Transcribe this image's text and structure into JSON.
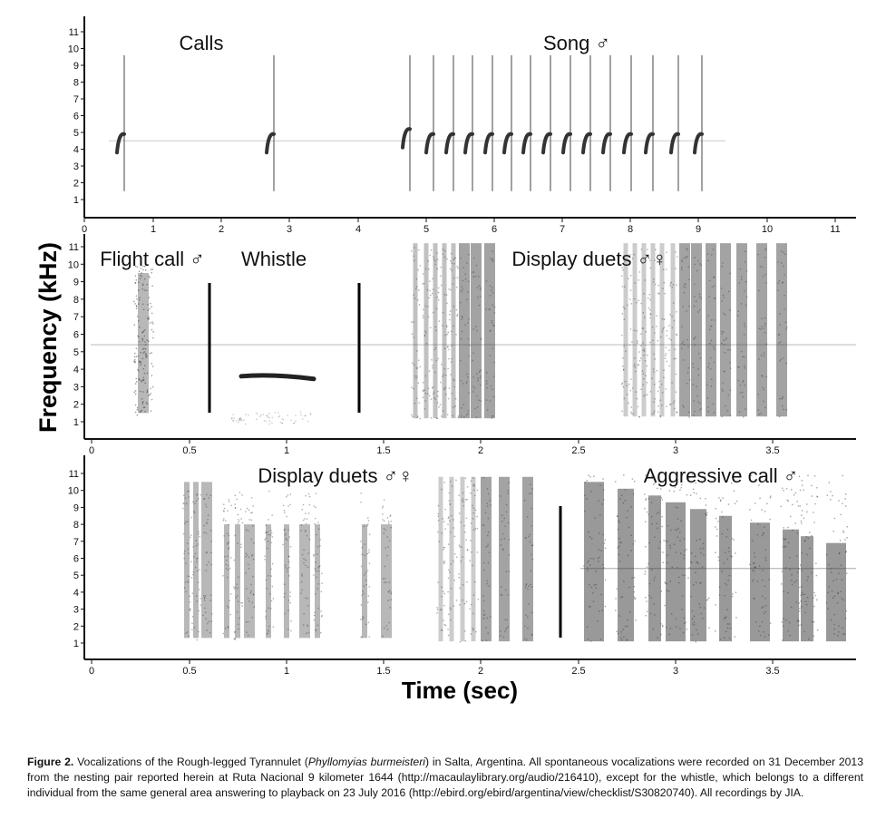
{
  "figure": {
    "ylabel": "Frequency (kHz)",
    "xlabel": "Time (sec)",
    "panels": [
      {
        "labels": [
          "Calls",
          "Song ♂"
        ],
        "xticks": [
          "0",
          "1",
          "2",
          "3",
          "4",
          "5",
          "6",
          "7",
          "8",
          "9",
          "10",
          "11"
        ],
        "yticks": [
          "1",
          "2",
          "3",
          "4",
          "5",
          "6",
          "7",
          "8",
          "9",
          "10",
          "11"
        ]
      },
      {
        "labels": [
          "Flight call ♂",
          "Whistle",
          "Display duets ♂♀"
        ],
        "xticks": [
          "0",
          "0.5",
          "1",
          "1.5",
          "2",
          "2.5",
          "3",
          "3.5"
        ],
        "yticks": [
          "1",
          "2",
          "3",
          "4",
          "5",
          "6",
          "7",
          "8",
          "9",
          "10",
          "11"
        ]
      },
      {
        "labels": [
          "Display duets ♂♀",
          "Aggressive call ♂"
        ],
        "xticks": [
          "0",
          "0.5",
          "1",
          "1.5",
          "2",
          "2.5",
          "3",
          "3.5"
        ],
        "yticks": [
          "1",
          "2",
          "3",
          "4",
          "5",
          "6",
          "7",
          "8",
          "9",
          "10",
          "11"
        ]
      }
    ]
  },
  "caption": {
    "label": "Figure 2.",
    "text_before_species": " Vocalizations of the Rough-legged Tyrannulet (",
    "species": "Phyllomyias burmeisteri",
    "text_after_species": ") in Salta, Argentina. All spontaneous vocalizations were recorded on 31 December 2013 from the nesting pair reported herein at Ruta Nacional 9 kilometer 1644 (http://macaulaylibrary.org/audio/216410), except for the whistle, which belongs to a different individual from the same general area answering to playback on 23 July 2016 (http://ebird.org/ebird/argentina/view/checklist/S30820740). All recordings by JIA."
  },
  "colors": {
    "ink": "#111111",
    "spectrogram": "#333333"
  }
}
